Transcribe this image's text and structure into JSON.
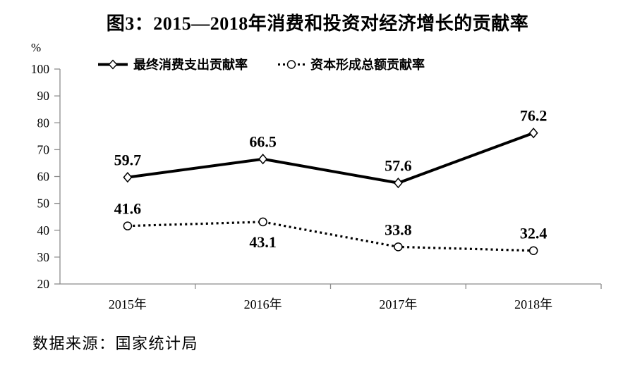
{
  "title": "图3：2015—2018年消费和投资对经济增长的贡献率",
  "unit_label": "%",
  "source_note": "数据来源：国家统计局",
  "chart_data": {
    "type": "line",
    "title": "图3：2015—2018年消费和投资对经济增长的贡献率",
    "categories": [
      "2015年",
      "2016年",
      "2017年",
      "2018年"
    ],
    "series": [
      {
        "name": "最终消费支出贡献率",
        "line_style": "solid",
        "marker": "diamond",
        "values": [
          59.7,
          66.5,
          57.6,
          76.2
        ],
        "label_position": [
          "above",
          "above",
          "above",
          "above"
        ]
      },
      {
        "name": "资本形成总额贡献率",
        "line_style": "dotted",
        "marker": "circle",
        "values": [
          41.6,
          43.1,
          33.8,
          32.4
        ],
        "label_position": [
          "above",
          "below",
          "above",
          "above"
        ]
      }
    ],
    "ylabel": "%",
    "ylim": [
      20,
      100
    ],
    "yticks": [
      20,
      30,
      40,
      50,
      60,
      70,
      80,
      90,
      100
    ],
    "grid": false,
    "legend_position": "top",
    "line_color": "#000000",
    "axis_color": "#8c8c8c",
    "source": "数据来源：国家统计局"
  }
}
